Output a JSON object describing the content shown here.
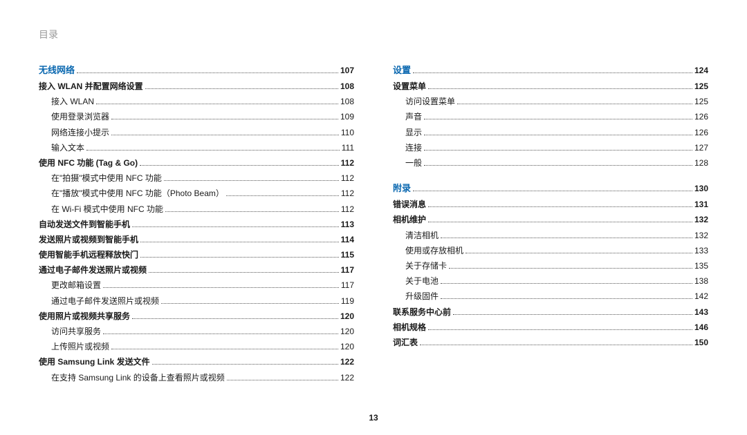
{
  "page_header": "目录",
  "page_number": "13",
  "left": [
    {
      "level": "section",
      "label": "无线网络",
      "page": "107"
    },
    {
      "level": "chapter",
      "label": "接入 WLAN 并配置网络设置",
      "page": "108"
    },
    {
      "level": "item",
      "label": "接入 WLAN",
      "page": "108"
    },
    {
      "level": "item",
      "label": "使用登录浏览器",
      "page": "109"
    },
    {
      "level": "item",
      "label": "网络连接小提示",
      "page": "110"
    },
    {
      "level": "item",
      "label": "输入文本",
      "page": "111"
    },
    {
      "level": "chapter",
      "label": "使用 NFC 功能 (Tag & Go)",
      "page": "112"
    },
    {
      "level": "item",
      "label": "在\"拍摄\"模式中使用 NFC 功能",
      "page": "112"
    },
    {
      "level": "item",
      "label": "在\"播放\"模式中使用 NFC 功能（Photo Beam）",
      "page": "112"
    },
    {
      "level": "item",
      "label": "在 Wi-Fi 模式中使用 NFC 功能",
      "page": "112"
    },
    {
      "level": "chapter",
      "label": "自动发送文件到智能手机",
      "page": "113"
    },
    {
      "level": "chapter",
      "label": "发送照片或视频到智能手机",
      "page": "114"
    },
    {
      "level": "chapter",
      "label": "使用智能手机远程释放快门",
      "page": "115"
    },
    {
      "level": "chapter",
      "label": "通过电子邮件发送照片或视频",
      "page": "117"
    },
    {
      "level": "item",
      "label": "更改邮箱设置",
      "page": "117"
    },
    {
      "level": "item",
      "label": "通过电子邮件发送照片或视频",
      "page": "119"
    },
    {
      "level": "chapter",
      "label": "使用照片或视频共享服务",
      "page": "120"
    },
    {
      "level": "item",
      "label": "访问共享服务",
      "page": "120"
    },
    {
      "level": "item",
      "label": "上传照片或视频",
      "page": "120"
    },
    {
      "level": "chapter",
      "label": "使用 Samsung Link 发送文件",
      "page": "122"
    },
    {
      "level": "item",
      "label": "在支持 Samsung Link 的设备上查看照片或视频",
      "page": "122"
    }
  ],
  "right": [
    {
      "level": "section",
      "label": "设置",
      "page": "124"
    },
    {
      "level": "chapter",
      "label": "设置菜单",
      "page": "125"
    },
    {
      "level": "item",
      "label": "访问设置菜单",
      "page": "125"
    },
    {
      "level": "item",
      "label": "声音",
      "page": "126"
    },
    {
      "level": "item",
      "label": "显示",
      "page": "126"
    },
    {
      "level": "item",
      "label": "连接",
      "page": "127"
    },
    {
      "level": "item",
      "label": "一般",
      "page": "128"
    },
    {
      "level": "gap"
    },
    {
      "level": "section",
      "label": "附录",
      "page": "130"
    },
    {
      "level": "chapter",
      "label": "错误消息",
      "page": "131"
    },
    {
      "level": "chapter",
      "label": "相机维护",
      "page": "132"
    },
    {
      "level": "item",
      "label": "清洁相机",
      "page": "132"
    },
    {
      "level": "item",
      "label": "使用或存放相机",
      "page": "133"
    },
    {
      "level": "item",
      "label": "关于存储卡",
      "page": "135"
    },
    {
      "level": "item",
      "label": "关于电池",
      "page": "138"
    },
    {
      "level": "item",
      "label": "升级固件",
      "page": "142"
    },
    {
      "level": "chapter",
      "label": "联系服务中心前",
      "page": "143"
    },
    {
      "level": "chapter",
      "label": "相机规格",
      "page": "146"
    },
    {
      "level": "chapter",
      "label": "词汇表",
      "page": "150"
    }
  ]
}
